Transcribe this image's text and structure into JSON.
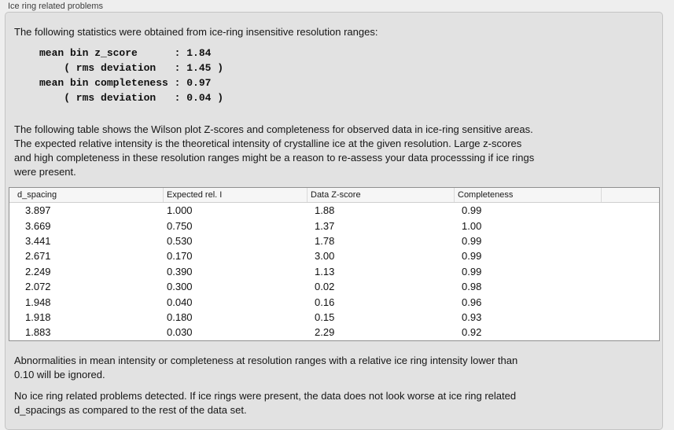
{
  "panel": {
    "title": "Ice ring related problems",
    "intro": "The following statistics were obtained from ice-ring insensitive resolution ranges:",
    "stats_lines": [
      "mean bin z_score      : 1.84",
      "    ( rms deviation   : 1.45 )",
      "mean bin completeness : 0.97",
      "    ( rms deviation   : 0.04 )"
    ],
    "stats": {
      "mean_bin_z_score": "1.84",
      "z_score_rms_deviation": "1.45",
      "mean_bin_completeness": "0.97",
      "completeness_rms_deviation": "0.04"
    },
    "description_lines": [
      "The following table shows the Wilson plot Z-scores and completeness for observed data in ice-ring sensitive areas.",
      "The expected relative intensity is the theoretical intensity of crystalline ice at the given resolution. Large z-scores",
      "and high completeness in these resolution ranges might be a reason to re-assess your data processsing if ice rings",
      "were present."
    ],
    "table": {
      "headers": [
        "d_spacing",
        "Expected rel. I",
        "Data Z-score",
        "Completeness",
        ""
      ],
      "rows": [
        [
          "3.897",
          "1.000",
          "1.88",
          "0.99"
        ],
        [
          "3.669",
          "0.750",
          "1.37",
          "1.00"
        ],
        [
          "3.441",
          "0.530",
          "1.78",
          "0.99"
        ],
        [
          "2.671",
          "0.170",
          "3.00",
          "0.99"
        ],
        [
          "2.249",
          "0.390",
          "1.13",
          "0.99"
        ],
        [
          "2.072",
          "0.300",
          "0.02",
          "0.98"
        ],
        [
          "1.948",
          "0.040",
          "0.16",
          "0.96"
        ],
        [
          "1.918",
          "0.180",
          "0.15",
          "0.93"
        ],
        [
          "1.883",
          "0.030",
          "2.29",
          "0.92"
        ]
      ]
    },
    "ignore_lines": [
      "Abnormalities in mean intensity or completeness at resolution ranges with a relative ice ring intensity lower than",
      "0.10 will be ignored."
    ],
    "conclusion_lines": [
      "No ice ring related problems detected. If ice rings were present, the data does not look worse at ice ring related",
      "d_spacings as compared to the rest of the data set."
    ]
  }
}
